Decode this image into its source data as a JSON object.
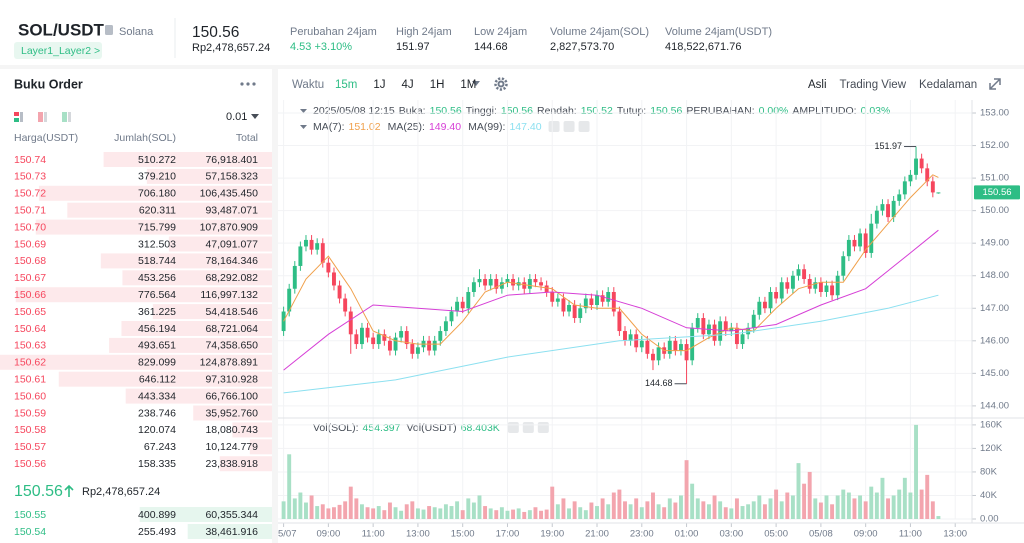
{
  "header": {
    "symbol": "SOL/USDT",
    "name": "Solana",
    "tag": "Layer1_Layer2 >",
    "price": "150.56",
    "price_idr": "Rp2,478,657.24",
    "stats": [
      {
        "label": "Perubahan 24jam",
        "value": "4.53 +3.10%"
      },
      {
        "label": "High 24jam",
        "value": "151.97"
      },
      {
        "label": "Low 24jam",
        "value": "144.68"
      },
      {
        "label": "Volume 24jam(SOL)",
        "value": "2,827,573.70"
      },
      {
        "label": "Volume 24jam(USDT)",
        "value": "418,522,671.76"
      }
    ]
  },
  "order_book": {
    "title": "Buku Order",
    "precision": "0.01",
    "columns": [
      "Harga(USDT)",
      "Jumlah(SOL)",
      "Total"
    ],
    "asks": [
      [
        "150.74",
        "510.272",
        "76,918.401"
      ],
      [
        "150.73",
        "379.210",
        "57,158.323"
      ],
      [
        "150.72",
        "706.180",
        "106,435.450"
      ],
      [
        "150.71",
        "620.311",
        "93,487.071"
      ],
      [
        "150.70",
        "715.799",
        "107,870.909"
      ],
      [
        "150.69",
        "312.503",
        "47,091.077"
      ],
      [
        "150.68",
        "518.744",
        "78,164.346"
      ],
      [
        "150.67",
        "453.256",
        "68,292.082"
      ],
      [
        "150.66",
        "776.564",
        "116,997.132"
      ],
      [
        "150.65",
        "361.225",
        "54,418.546"
      ],
      [
        "150.64",
        "456.194",
        "68,721.064"
      ],
      [
        "150.63",
        "493.651",
        "74,358.650"
      ],
      [
        "150.62",
        "829.099",
        "124,878.891"
      ],
      [
        "150.61",
        "646.112",
        "97,310.928"
      ],
      [
        "150.60",
        "443.334",
        "66,766.100"
      ],
      [
        "150.59",
        "238.746",
        "35,952.760"
      ],
      [
        "150.58",
        "120.074",
        "18,080.743"
      ],
      [
        "150.57",
        "67.243",
        "10,124.779"
      ],
      [
        "150.56",
        "158.335",
        "23,838.918"
      ]
    ],
    "last_price": "150.56",
    "last_price_idr": "Rp2,478,657.24",
    "bids": [
      [
        "150.55",
        "400.899",
        "60,355.344"
      ],
      [
        "150.54",
        "255.493",
        "38,461.916"
      ]
    ]
  },
  "toolbar": {
    "label": "Waktu",
    "intervals": [
      "15m",
      "1J",
      "4J",
      "1H",
      "1M"
    ],
    "active": "15m",
    "views": [
      "Asli",
      "Trading View",
      "Kedalaman"
    ]
  },
  "chart_data": {
    "type": "candlestick",
    "info_time": "2025/05/08 12:15",
    "info": [
      {
        "label": "Buka:",
        "value": "150.56"
      },
      {
        "label": "Tinggi:",
        "value": "150.56"
      },
      {
        "label": "Rendah:",
        "value": "150.52"
      },
      {
        "label": "Tutup:",
        "value": "150.56"
      },
      {
        "label": "PERUBAHAN:",
        "value": "0.00%"
      },
      {
        "label": "AMPLITUDO:",
        "value": "0.03%"
      }
    ],
    "up_color": "#2ebd85",
    "down_color": "#f6465d",
    "volume_up_color": "#a8e0c6",
    "volume_down_color": "#f3a5ae",
    "open": [
      146.3,
      146.9,
      147.6,
      148.3,
      148.9,
      149.1,
      148.8,
      149.0,
      148.4,
      148.1,
      147.7,
      147.3,
      146.9,
      146.2,
      145.9,
      146.4,
      146.1,
      145.9,
      146.2,
      146.0,
      145.7,
      146.1,
      146.3,
      145.9,
      145.6,
      145.8,
      146.0,
      145.7,
      146.0,
      146.3,
      146.6,
      146.9,
      147.2,
      147.0,
      147.5,
      147.8,
      147.9,
      147.7,
      147.9,
      147.6,
      147.8,
      147.9,
      147.7,
      147.8,
      147.6,
      147.9,
      147.8,
      147.7,
      147.5,
      147.2,
      147.3,
      146.9,
      147.1,
      146.7,
      147.0,
      147.3,
      147.1,
      147.4,
      147.2,
      147.5,
      146.9,
      146.3,
      146.0,
      146.2,
      145.8,
      146.0,
      145.6,
      145.4,
      145.8,
      145.6,
      146.0,
      145.7,
      145.9,
      145.4,
      146.4,
      146.7,
      146.2,
      146.5,
      146.0,
      146.6,
      146.3,
      146.4,
      145.9,
      146.2,
      146.4,
      146.8,
      147.2,
      147.0,
      147.5,
      147.3,
      147.8,
      147.6,
      148.0,
      148.2,
      147.9,
      147.6,
      147.8,
      147.5,
      147.7,
      147.4,
      148.0,
      148.6,
      149.1,
      148.9,
      149.3,
      148.7,
      149.6,
      150.0,
      150.2,
      149.8,
      150.3,
      150.5,
      150.9,
      151.1,
      151.6,
      151.3,
      150.9,
      150.56
    ],
    "high": [
      147.05,
      147.75,
      148.45,
      149.05,
      149.25,
      149.25,
      149.15,
      149.15,
      148.55,
      148.25,
      147.85,
      147.45,
      147.05,
      146.35,
      146.55,
      146.55,
      146.25,
      146.35,
      146.35,
      146.15,
      146.25,
      146.45,
      146.45,
      146.05,
      145.95,
      146.15,
      146.15,
      146.15,
      146.45,
      146.75,
      147.05,
      147.35,
      147.35,
      147.65,
      147.95,
      148.2,
      148.05,
      148.05,
      148.05,
      147.95,
      148.05,
      148.05,
      147.95,
      147.95,
      148.05,
      148.05,
      147.95,
      147.85,
      147.65,
      147.45,
      147.45,
      147.25,
      147.25,
      147.15,
      147.45,
      147.45,
      147.55,
      147.55,
      147.65,
      147.65,
      147.05,
      146.45,
      146.35,
      146.35,
      146.15,
      146.15,
      145.75,
      145.95,
      145.95,
      146.15,
      146.15,
      146.05,
      146.05,
      146.55,
      146.85,
      146.85,
      146.65,
      146.65,
      146.75,
      146.75,
      146.55,
      146.55,
      146.35,
      146.55,
      146.95,
      147.35,
      147.35,
      147.65,
      147.65,
      147.95,
      147.95,
      148.15,
      148.35,
      148.35,
      148.05,
      147.95,
      147.95,
      147.85,
      147.85,
      148.15,
      148.75,
      149.25,
      149.25,
      149.45,
      149.45,
      149.9,
      150.15,
      150.35,
      150.35,
      150.45,
      150.65,
      151.05,
      151.25,
      151.97,
      151.75,
      151.45,
      151.05,
      150.56
    ],
    "low": [
      146.15,
      146.75,
      147.45,
      148.15,
      148.75,
      148.65,
      148.65,
      148.25,
      147.95,
      147.55,
      147.15,
      146.75,
      145.6,
      145.75,
      145.75,
      145.95,
      145.75,
      145.75,
      145.85,
      145.55,
      145.55,
      145.95,
      145.75,
      145.45,
      145.45,
      145.65,
      145.55,
      145.55,
      145.85,
      146.15,
      146.45,
      146.75,
      146.85,
      146.85,
      147.35,
      147.65,
      147.55,
      147.55,
      147.45,
      147.45,
      147.65,
      147.55,
      147.55,
      147.45,
      147.45,
      147.65,
      147.55,
      147.35,
      147.05,
      147.05,
      146.75,
      146.75,
      146.55,
      146.55,
      146.85,
      146.95,
      146.95,
      147.05,
      147.05,
      146.75,
      146.15,
      145.85,
      145.85,
      145.65,
      145.65,
      145.45,
      145.1,
      145.25,
      145.45,
      145.45,
      145.55,
      145.55,
      144.68,
      145.25,
      146.25,
      146.05,
      146.05,
      145.85,
      145.85,
      146.15,
      146.15,
      145.75,
      145.75,
      146.05,
      146.25,
      146.65,
      146.85,
      146.85,
      147.15,
      147.15,
      147.45,
      147.45,
      147.85,
      147.75,
      147.45,
      147.45,
      147.35,
      147.35,
      147.25,
      147.25,
      147.85,
      148.45,
      148.75,
      148.75,
      148.55,
      148.55,
      149.45,
      149.85,
      149.65,
      149.65,
      150.15,
      150.35,
      150.75,
      150.95,
      151.15,
      150.75,
      150.41,
      150.52
    ],
    "close": [
      146.9,
      147.6,
      148.3,
      148.9,
      149.1,
      148.8,
      149.0,
      148.4,
      148.1,
      147.7,
      147.3,
      146.9,
      146.2,
      145.9,
      146.4,
      146.1,
      145.9,
      146.2,
      146.0,
      145.7,
      146.1,
      146.3,
      145.9,
      145.6,
      145.8,
      146.0,
      145.7,
      146.0,
      146.3,
      146.6,
      146.9,
      147.2,
      147.0,
      147.5,
      147.8,
      147.9,
      147.7,
      147.9,
      147.6,
      147.8,
      147.9,
      147.7,
      147.8,
      147.6,
      147.9,
      147.8,
      147.7,
      147.5,
      147.2,
      147.3,
      146.9,
      147.1,
      146.7,
      147.0,
      147.3,
      147.1,
      147.4,
      147.2,
      147.5,
      146.9,
      146.3,
      146.0,
      146.2,
      145.8,
      146.0,
      145.6,
      145.4,
      145.8,
      145.6,
      146.0,
      145.7,
      145.9,
      145.4,
      146.4,
      146.7,
      146.2,
      146.5,
      146.0,
      146.6,
      146.3,
      146.4,
      145.9,
      146.2,
      146.4,
      146.8,
      147.2,
      147.0,
      147.5,
      147.3,
      147.8,
      147.6,
      148.0,
      148.2,
      147.9,
      147.6,
      147.8,
      147.5,
      147.7,
      147.4,
      148.0,
      148.6,
      149.1,
      148.9,
      149.3,
      148.7,
      149.6,
      150.0,
      150.2,
      149.8,
      150.3,
      150.5,
      150.9,
      151.1,
      151.6,
      151.3,
      150.9,
      150.56,
      150.56
    ],
    "volume": [
      30000,
      110000,
      35000,
      45000,
      28000,
      40000,
      22000,
      25000,
      18000,
      20000,
      24000,
      30000,
      55000,
      35000,
      25000,
      20000,
      18000,
      22000,
      15000,
      28000,
      20000,
      14000,
      25000,
      30000,
      18000,
      16000,
      22000,
      20000,
      18000,
      25000,
      22000,
      30000,
      15000,
      35000,
      28000,
      40000,
      22000,
      18000,
      15000,
      20000,
      14000,
      16000,
      18000,
      12000,
      15000,
      20000,
      14000,
      16000,
      55000,
      25000,
      35000,
      18000,
      30000,
      20000,
      15000,
      28000,
      22000,
      35000,
      25000,
      45000,
      50000,
      30000,
      25000,
      35000,
      20000,
      30000,
      45000,
      25000,
      20000,
      35000,
      28000,
      40000,
      100000,
      60000,
      35000,
      30000,
      25000,
      40000,
      30000,
      20000,
      18000,
      35000,
      22000,
      25000,
      30000,
      40000,
      25000,
      35000,
      50000,
      30000,
      45000,
      40000,
      95000,
      60000,
      80000,
      35000,
      28000,
      40000,
      25000,
      40000,
      50000,
      45000,
      35000,
      40000,
      30000,
      55000,
      45000,
      70000,
      35000,
      40000,
      50000,
      70000,
      45000,
      160000,
      50000,
      75000,
      30000,
      5000
    ],
    "ma": [
      {
        "name": "MA(7):",
        "legend_value": "151.02",
        "color": "#f0a04b",
        "x": [
          0,
          4,
          8,
          12,
          16,
          20,
          24,
          28,
          32,
          36,
          40,
          44,
          48,
          52,
          56,
          60,
          64,
          68,
          72,
          76,
          80,
          84,
          88,
          92,
          96,
          100,
          104,
          108,
          112,
          116,
          117
        ],
        "values": [
          146.6,
          147.9,
          148.6,
          147.6,
          146.3,
          146.0,
          145.9,
          145.9,
          146.6,
          147.5,
          147.8,
          147.7,
          147.6,
          147.1,
          147.0,
          147.0,
          146.2,
          145.7,
          145.7,
          146.1,
          146.4,
          146.3,
          147.0,
          147.6,
          147.8,
          147.8,
          148.8,
          149.6,
          150.4,
          151.1,
          151.02
        ]
      },
      {
        "name": "MA(25):",
        "legend_value": "149.40",
        "color": "#d63fd6",
        "x": [
          0,
          8,
          16,
          24,
          32,
          40,
          48,
          56,
          64,
          72,
          80,
          88,
          96,
          104,
          112,
          117
        ],
        "values": [
          145.1,
          146.2,
          147.1,
          147.0,
          146.9,
          147.4,
          147.5,
          147.4,
          147.0,
          146.4,
          146.3,
          146.5,
          147.1,
          147.6,
          148.7,
          149.4
        ]
      },
      {
        "name": "MA(99):",
        "legend_value": "147.40",
        "color": "#8ce0f0",
        "x": [
          0,
          20,
          40,
          60,
          80,
          96,
          108,
          117
        ],
        "values": [
          144.4,
          144.8,
          145.5,
          146.0,
          146.2,
          146.6,
          147.0,
          147.4
        ]
      }
    ],
    "volume_legend": [
      {
        "label": "Vol(SOL):",
        "value": "454.397"
      },
      {
        "label": "Vol(USDT)",
        "value": "68.403K"
      }
    ],
    "xlim": [
      -1,
      123
    ],
    "xticks": [
      {
        "value": 0,
        "label": "5/07"
      },
      {
        "value": 8,
        "label": "09:00"
      },
      {
        "value": 16,
        "label": "11:00"
      },
      {
        "value": 24,
        "label": "13:00"
      },
      {
        "value": 32,
        "label": "15:00"
      },
      {
        "value": 40,
        "label": "17:00"
      },
      {
        "value": 48,
        "label": "19:00"
      },
      {
        "value": 56,
        "label": "21:00"
      },
      {
        "value": 64,
        "label": "23:00"
      },
      {
        "value": 72,
        "label": "01:00"
      },
      {
        "value": 80,
        "label": "03:00"
      },
      {
        "value": 88,
        "label": "05:00"
      },
      {
        "value": 96,
        "label": "05/08"
      },
      {
        "value": 104,
        "label": "09:00"
      },
      {
        "value": 112,
        "label": "11:00"
      },
      {
        "value": 120,
        "label": "13:00"
      }
    ],
    "ylim": [
      143.72,
      153.4
    ],
    "yticks": [
      {
        "value": 144,
        "label": "144.00"
      },
      {
        "value": 145,
        "label": "145.00"
      },
      {
        "value": 146,
        "label": "146.00"
      },
      {
        "value": 147,
        "label": "147.00"
      },
      {
        "value": 148,
        "label": "148.00"
      },
      {
        "value": 149,
        "label": "149.00"
      },
      {
        "value": 150,
        "label": "150.00"
      },
      {
        "value": 151,
        "label": "151.00"
      },
      {
        "value": 152,
        "label": "152.00"
      },
      {
        "value": 153,
        "label": "153.00"
      }
    ],
    "y2lim": [
      0,
      170000
    ],
    "y2ticks": [
      {
        "value": 0,
        "label": "0.00"
      },
      {
        "value": 40000,
        "label": "40K"
      },
      {
        "value": 80000,
        "label": "80K"
      },
      {
        "value": 120000,
        "label": "120K"
      },
      {
        "value": 160000,
        "label": "160K"
      }
    ],
    "grid": true
  }
}
